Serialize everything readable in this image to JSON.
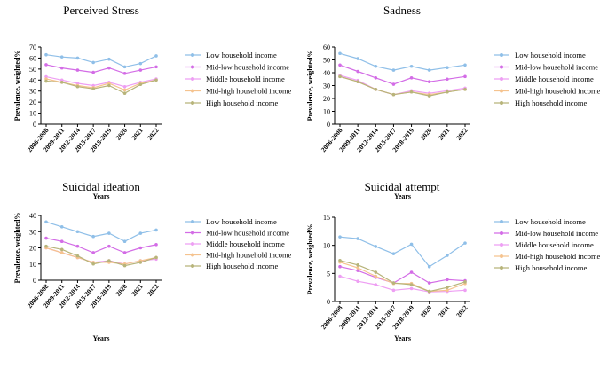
{
  "colors": {
    "series": [
      "#8fbfe8",
      "#d36ce6",
      "#ee9ff3",
      "#f5c38f",
      "#b7b47a"
    ],
    "axis": "#000000"
  },
  "chart_data": [
    {
      "type": "line",
      "title": "Perceived Stress",
      "xlabel": "Years",
      "ylabel": "Prevalence, weighted%",
      "ylim": [
        0,
        70
      ],
      "yticks": [
        0,
        10,
        20,
        30,
        40,
        50,
        60,
        70
      ],
      "categories": [
        "2006-2008",
        "2009-2011",
        "2012-2014",
        "2015-2017",
        "2018-2019",
        "2020",
        "2021",
        "2022"
      ],
      "series": [
        {
          "name": "Low household income",
          "values": [
            63,
            61,
            60,
            56,
            59,
            52,
            55,
            62
          ]
        },
        {
          "name": "Mid-low household income",
          "values": [
            54,
            51,
            49,
            47,
            51,
            46,
            49,
            52
          ]
        },
        {
          "name": "Middle household income",
          "values": [
            43,
            40,
            37,
            35,
            38,
            34,
            38,
            41
          ]
        },
        {
          "name": "Mid-high household income",
          "values": [
            41,
            38,
            35,
            33,
            37,
            31,
            37,
            40
          ]
        },
        {
          "name": "High household income",
          "values": [
            39,
            38,
            34,
            32,
            35,
            28,
            36,
            40
          ]
        }
      ]
    },
    {
      "type": "line",
      "title": "Sadness",
      "xlabel": "Years",
      "ylabel": "Prevalence, weighted%",
      "ylim": [
        0,
        60
      ],
      "yticks": [
        0,
        10,
        20,
        30,
        40,
        50,
        60
      ],
      "categories": [
        "2006-2008",
        "2009-2011",
        "2012-2014",
        "2015-2017",
        "2018-2019",
        "2020",
        "2021",
        "2022"
      ],
      "series": [
        {
          "name": "Low household income",
          "values": [
            55,
            51,
            45,
            42,
            45,
            42,
            44,
            46
          ]
        },
        {
          "name": "Mid-low household income",
          "values": [
            46,
            41,
            36,
            31,
            36,
            33,
            35,
            37
          ]
        },
        {
          "name": "Middle household income",
          "values": [
            38,
            34,
            27,
            23,
            26,
            24,
            26,
            28
          ]
        },
        {
          "name": "Mid-high household income",
          "values": [
            37,
            33,
            27,
            23,
            25,
            23,
            25,
            27
          ]
        },
        {
          "name": "High household income",
          "values": [
            37,
            33,
            27,
            23,
            25,
            22,
            25,
            27
          ]
        }
      ]
    },
    {
      "type": "line",
      "title": "Suicidal ideation",
      "xlabel": "Years",
      "ylabel": "Prevalence, weighted%",
      "ylim": [
        0,
        40
      ],
      "yticks": [
        0,
        10,
        20,
        30,
        40
      ],
      "categories": [
        "2006-2008",
        "2009-2011",
        "2012-2014",
        "2015-2017",
        "2018-2019",
        "2020",
        "2021",
        "2022"
      ],
      "series": [
        {
          "name": "Low household income",
          "values": [
            36,
            33,
            30,
            27,
            29,
            24,
            29,
            31
          ]
        },
        {
          "name": "Mid-low household income",
          "values": [
            26,
            24,
            21,
            17,
            21,
            17,
            20,
            22
          ]
        },
        {
          "name": "Middle household income",
          "values": [
            20,
            17,
            14,
            11,
            12,
            10,
            12,
            13
          ]
        },
        {
          "name": "Mid-high household income",
          "values": [
            20,
            17,
            14,
            11,
            11,
            10,
            12,
            14
          ]
        },
        {
          "name": "High household income",
          "values": [
            21,
            19,
            15,
            10,
            12,
            9,
            11,
            14
          ]
        }
      ]
    },
    {
      "type": "line",
      "title": "Suicidal attempt",
      "xlabel": "Years",
      "ylabel": "Prevalence, weighted%",
      "ylim": [
        0,
        15
      ],
      "yticks": [
        0,
        5,
        10,
        15
      ],
      "categories": [
        "2006-2008",
        "2009-2011",
        "2012-2014",
        "2015-2017",
        "2018-2019",
        "2020",
        "2021",
        "2022"
      ],
      "series": [
        {
          "name": "Low household income",
          "values": [
            11.5,
            11.2,
            9.8,
            8.5,
            10.2,
            6.2,
            8.2,
            10.4
          ]
        },
        {
          "name": "Mid-low household income",
          "values": [
            6.2,
            5.5,
            4.3,
            3.3,
            5.2,
            3.3,
            3.9,
            3.7
          ]
        },
        {
          "name": "Middle household income",
          "values": [
            4.5,
            3.6,
            3.0,
            2.0,
            2.3,
            1.7,
            1.8,
            2.0
          ]
        },
        {
          "name": "Mid-high household income",
          "values": [
            7.0,
            6.0,
            4.5,
            3.2,
            3.2,
            1.8,
            2.0,
            3.2
          ]
        },
        {
          "name": "High household income",
          "values": [
            7.3,
            6.5,
            5.2,
            3.3,
            3.0,
            1.8,
            2.5,
            3.5
          ]
        }
      ]
    }
  ]
}
